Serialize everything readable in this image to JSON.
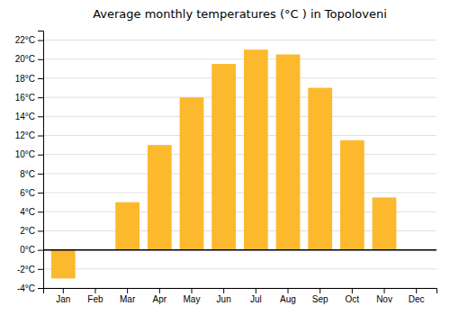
{
  "chart_data": {
    "type": "bar",
    "title": "Average monthly temperatures (°C ) in Topoloveni",
    "categories": [
      "Jan",
      "Feb",
      "Mar",
      "Apr",
      "May",
      "Jun",
      "Jul",
      "Aug",
      "Sep",
      "Oct",
      "Nov",
      "Dec"
    ],
    "values": [
      -3,
      0,
      5,
      11,
      16,
      19.5,
      21,
      20.5,
      17,
      11.5,
      5.5,
      0
    ],
    "color": "#FDB92E",
    "ylim": [
      -4,
      23
    ],
    "yticks": [
      {
        "value": -4,
        "label": "-4°C"
      },
      {
        "value": -2,
        "label": "-2°C"
      },
      {
        "value": 0,
        "label": "0°C"
      },
      {
        "value": 2,
        "label": "2°C"
      },
      {
        "value": 4,
        "label": "4°C"
      },
      {
        "value": 6,
        "label": "6°C"
      },
      {
        "value": 8,
        "label": "8°C"
      },
      {
        "value": 10,
        "label": "10°C"
      },
      {
        "value": 12,
        "label": "12°C"
      },
      {
        "value": 14,
        "label": "14°C"
      },
      {
        "value": 16,
        "label": "16°C"
      },
      {
        "value": 18,
        "label": "18°C"
      },
      {
        "value": 20,
        "label": "20°C"
      },
      {
        "value": 22,
        "label": "22°C"
      }
    ],
    "grid": true
  }
}
